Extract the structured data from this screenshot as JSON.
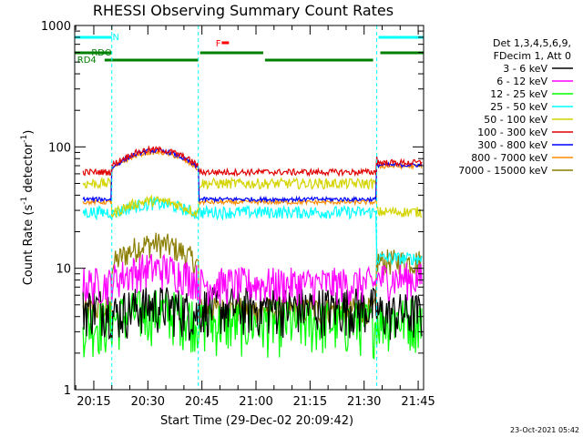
{
  "chart_data": {
    "type": "line",
    "title": "RHESSI Observing Summary Count Rates",
    "xlabel": "Start Time (29-Dec-02 20:09:42)",
    "ylabel_main": "Count Rate (s",
    "ylabel_sup1": "-1",
    "ylabel_mid": " detector",
    "ylabel_sup2": "-1",
    "ylabel_end": ")",
    "yscale": "log",
    "xlim_min": [
      9.7,
      106.5
    ],
    "ylim": [
      1,
      1000
    ],
    "x_ticks": [
      {
        "t": 15,
        "label": "20:15"
      },
      {
        "t": 30,
        "label": "20:30"
      },
      {
        "t": 45,
        "label": "20:45"
      },
      {
        "t": 60,
        "label": "21:00"
      },
      {
        "t": 75,
        "label": "21:15"
      },
      {
        "t": 90,
        "label": "21:30"
      },
      {
        "t": 105,
        "label": "21:45"
      }
    ],
    "y_ticks": [
      {
        "v": 1,
        "label": "1"
      },
      {
        "v": 10,
        "label": "10"
      },
      {
        "v": 100,
        "label": "100"
      },
      {
        "v": 1000,
        "label": "1000"
      }
    ],
    "legend_header": [
      "Det 1,3,4,5,6,9,",
      "FDecim 1, Att 0"
    ],
    "series": [
      {
        "name": "3 - 6 keV",
        "color": "#000000"
      },
      {
        "name": "6 - 12 keV",
        "color": "#ff00ff"
      },
      {
        "name": "12 - 25 keV",
        "color": "#00ff00"
      },
      {
        "name": "25 - 50 keV",
        "color": "#00ffff"
      },
      {
        "name": "50 - 100 keV",
        "color": "#d4d400"
      },
      {
        "name": "100 - 300 keV",
        "color": "#e00000"
      },
      {
        "name": "300 - 800 keV",
        "color": "#0000ff"
      },
      {
        "name": "800 - 7000 keV",
        "color": "#ff8c00"
      },
      {
        "name": "7000 - 15000 keV",
        "color": "#8b7d00"
      }
    ],
    "flags": {
      "N": {
        "label": "N",
        "color": "#00ffff",
        "segments": [
          [
            9.7,
            20.0
          ],
          [
            94.0,
            106.5
          ]
        ]
      },
      "RDO": {
        "label": "RDO",
        "color": "#008000",
        "segments": [
          [
            9.7,
            20.0
          ],
          [
            44.5,
            62.0
          ],
          [
            94.5,
            106.5
          ]
        ]
      },
      "RD4": {
        "label": "RD4",
        "color": "#008000",
        "segments": [
          [
            18.0,
            44.0
          ],
          [
            62.5,
            92.5
          ]
        ]
      },
      "F": {
        "label": "F",
        "color": "#ff0000",
        "segments": [
          [
            50.5,
            52.5
          ]
        ]
      }
    },
    "night_boundaries": [
      20.0,
      44.0,
      93.5,
      106.5
    ],
    "timestamp": "23-Oct-2021 05:42"
  }
}
